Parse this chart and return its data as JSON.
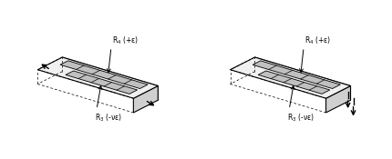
{
  "bg_color": "#ffffff",
  "gauge_fill": "#c0c0c0",
  "label_R4": "R$_4$ (+ε)",
  "label_R3": "R$_3$ (-νε)",
  "fig_width": 4.31,
  "fig_height": 1.75,
  "dpi": 100
}
